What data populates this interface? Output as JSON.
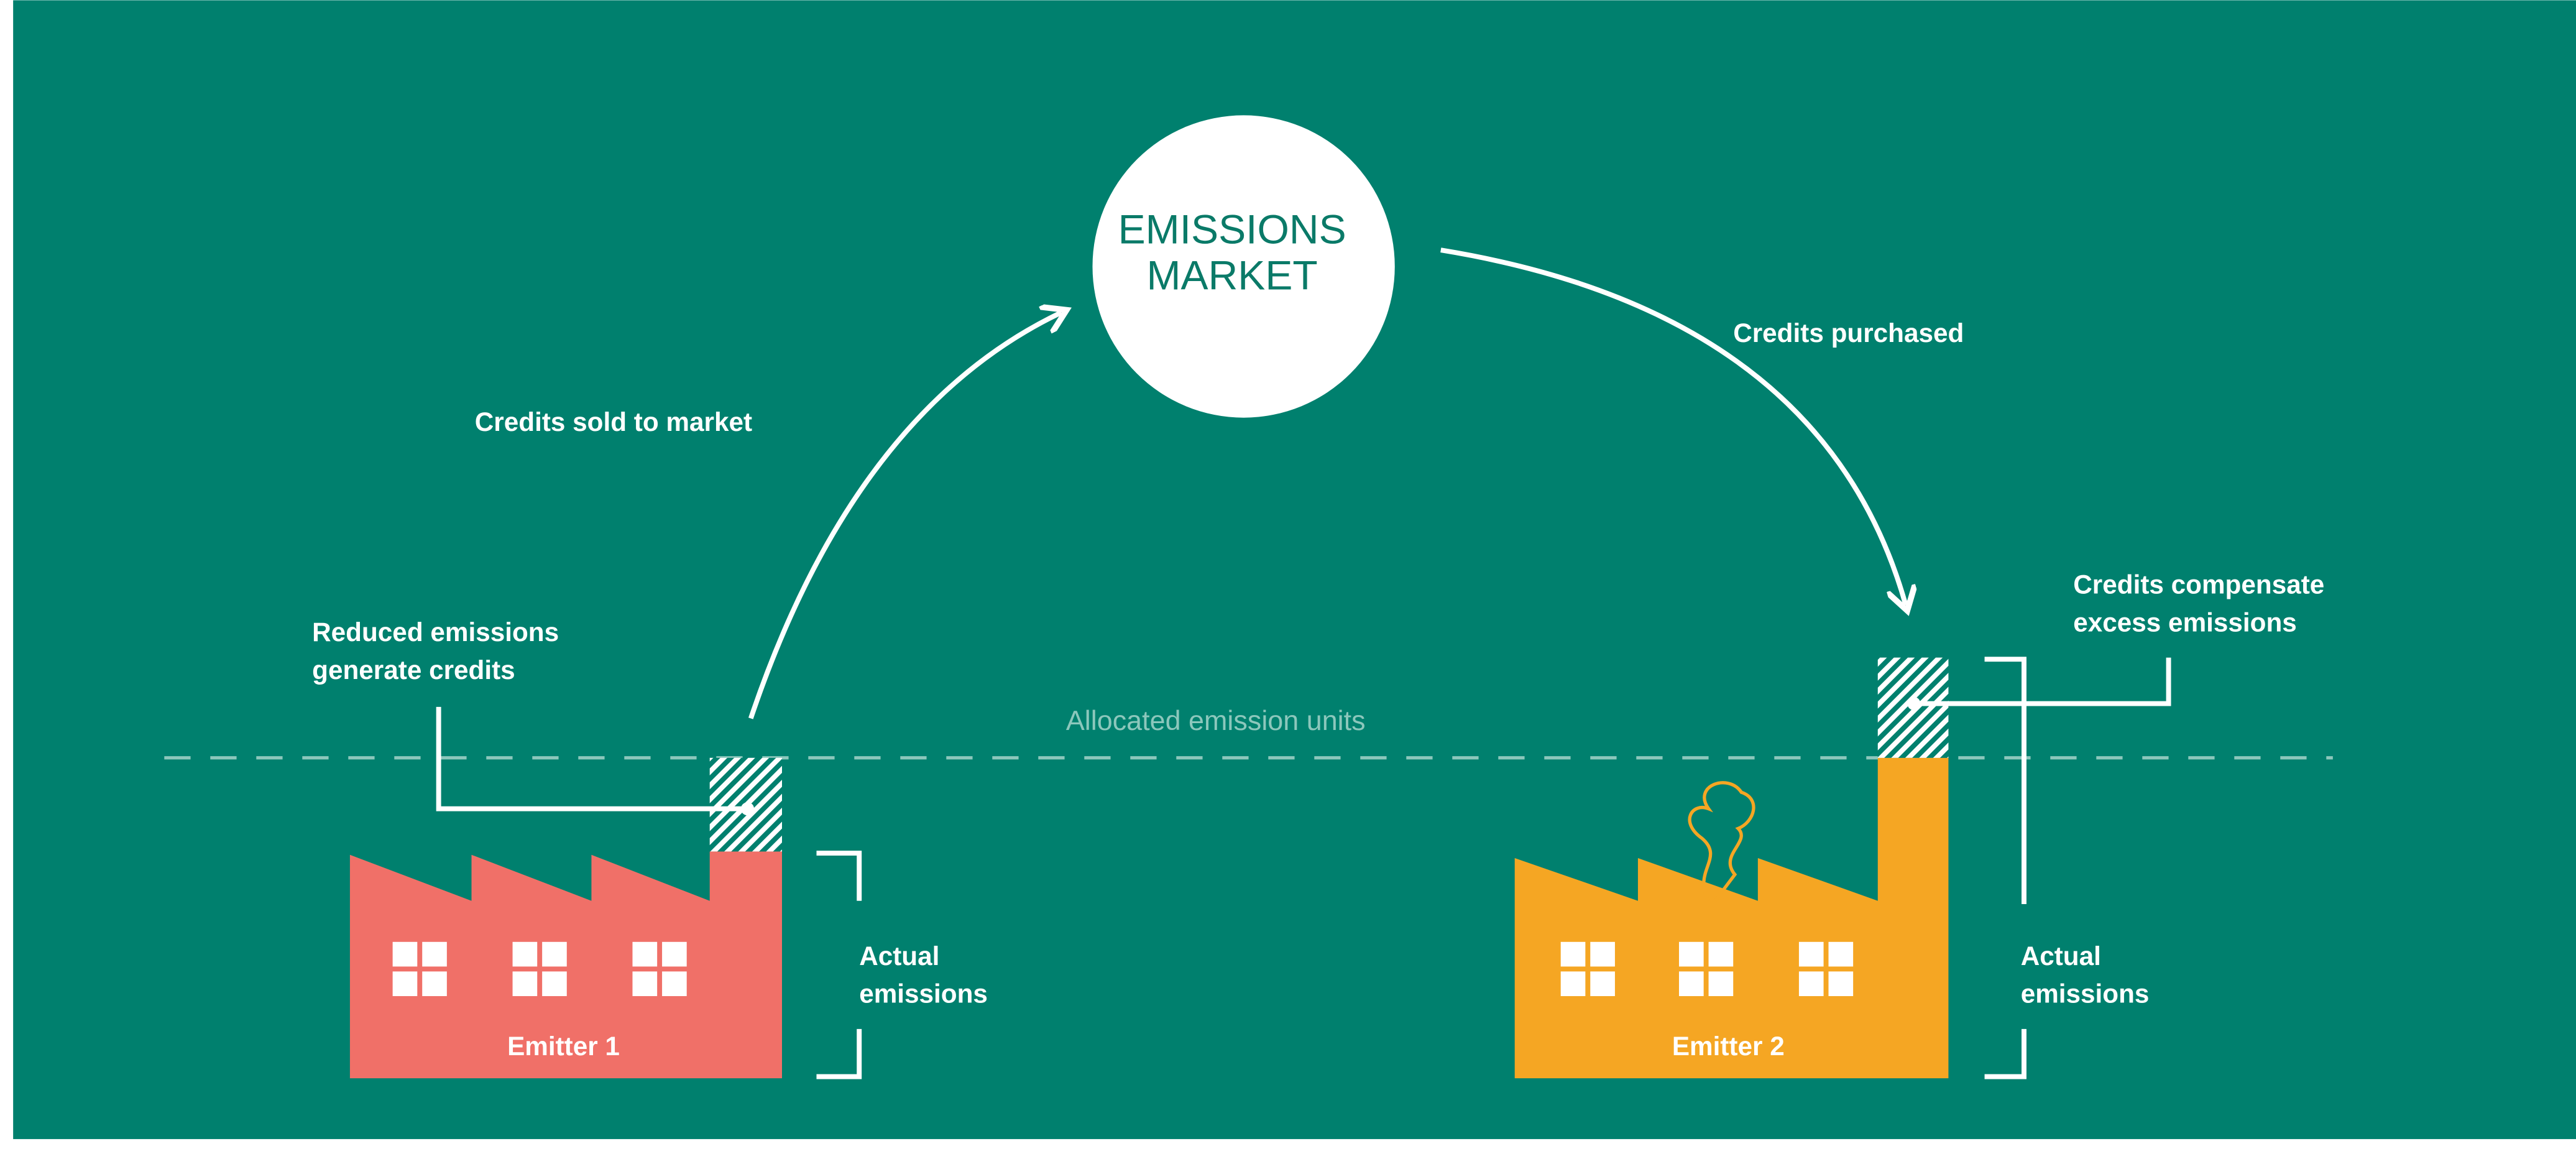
{
  "market": {
    "label": [
      "EMISSIONS",
      "MARKET"
    ]
  },
  "flows": {
    "sold": "Credits sold to market",
    "purchased": "Credits purchased"
  },
  "baseline": "Allocated emission units",
  "emitters": [
    {
      "name": "Emitter 1",
      "note": [
        "Reduced emissions",
        "generate credits"
      ],
      "bracket": [
        "Actual",
        "emissions"
      ]
    },
    {
      "name": "Emitter 2",
      "note": [
        "Credits compensate",
        "excess emissions"
      ],
      "bracket": [
        "Actual",
        "emissions"
      ]
    }
  ]
}
